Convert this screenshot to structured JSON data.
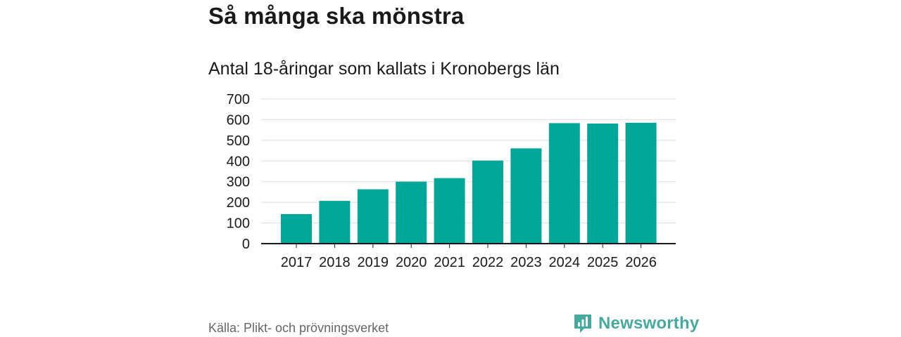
{
  "chart_data": {
    "type": "bar",
    "title": "Så många ska mönstra",
    "subtitle": "Antal 18-åringar som kallats i Kronobergs län",
    "categories": [
      "2017",
      "2018",
      "2019",
      "2020",
      "2021",
      "2022",
      "2023",
      "2024",
      "2025",
      "2026"
    ],
    "values": [
      143,
      207,
      263,
      300,
      317,
      402,
      461,
      583,
      581,
      585
    ],
    "ylim": [
      0,
      700
    ],
    "yticks": [
      0,
      100,
      200,
      300,
      400,
      500,
      600,
      700
    ],
    "xlabel": "",
    "ylabel": "",
    "grid": true,
    "bar_color": "#00a698"
  },
  "footer": {
    "source": "Källa: Plikt- och prövningsverket",
    "brand": "Newsworthy",
    "brand_icon": "bar-chart-logo-icon",
    "brand_color": "#46a99f"
  }
}
